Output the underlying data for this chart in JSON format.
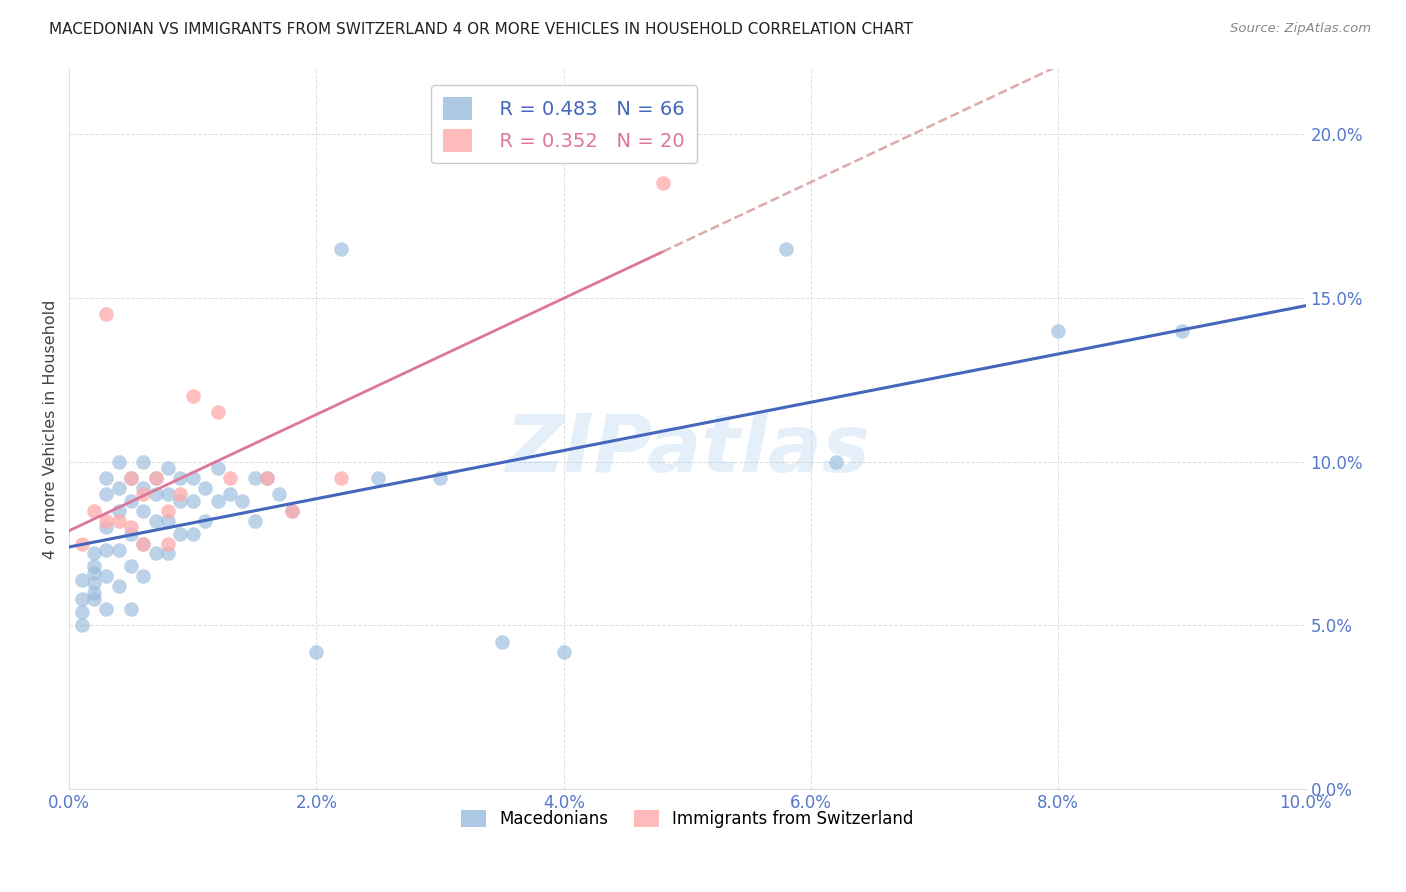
{
  "title": "MACEDONIAN VS IMMIGRANTS FROM SWITZERLAND 4 OR MORE VEHICLES IN HOUSEHOLD CORRELATION CHART",
  "source": "Source: ZipAtlas.com",
  "ylabel": "4 or more Vehicles in Household",
  "legend_label_blue": "Macedonians",
  "legend_label_pink": "Immigrants from Switzerland",
  "legend_R_blue": "R = 0.483",
  "legend_N_blue": "N = 66",
  "legend_R_pink": "R = 0.352",
  "legend_N_pink": "N = 20",
  "xlim": [
    0.0,
    0.1
  ],
  "ylim": [
    0.0,
    0.22
  ],
  "xtick_vals": [
    0.0,
    0.02,
    0.04,
    0.06,
    0.08,
    0.1
  ],
  "ytick_vals": [
    0.0,
    0.05,
    0.1,
    0.15,
    0.2
  ],
  "blue_scatter_color": "#99BBDD",
  "pink_scatter_color": "#FFAAAA",
  "trendline_blue_color": "#4466BB",
  "trendline_pink_solid_color": "#DD7799",
  "trendline_pink_dashed_color": "#DDAAAA",
  "watermark": "ZIPatlas",
  "tick_color": "#5577CC",
  "grid_color": "#DDDDDD",
  "mac_x": [
    0.001,
    0.001,
    0.001,
    0.001,
    0.002,
    0.002,
    0.002,
    0.002,
    0.002,
    0.002,
    0.003,
    0.003,
    0.003,
    0.003,
    0.003,
    0.003,
    0.004,
    0.004,
    0.004,
    0.004,
    0.004,
    0.005,
    0.005,
    0.005,
    0.005,
    0.005,
    0.006,
    0.006,
    0.006,
    0.006,
    0.006,
    0.007,
    0.007,
    0.007,
    0.007,
    0.008,
    0.008,
    0.008,
    0.008,
    0.009,
    0.009,
    0.009,
    0.01,
    0.01,
    0.01,
    0.011,
    0.011,
    0.012,
    0.012,
    0.013,
    0.014,
    0.015,
    0.015,
    0.016,
    0.017,
    0.018,
    0.02,
    0.022,
    0.025,
    0.03,
    0.035,
    0.04,
    0.058,
    0.062,
    0.08,
    0.09
  ],
  "mac_y": [
    0.064,
    0.058,
    0.054,
    0.05,
    0.068,
    0.063,
    0.058,
    0.072,
    0.066,
    0.06,
    0.095,
    0.09,
    0.08,
    0.073,
    0.065,
    0.055,
    0.1,
    0.092,
    0.085,
    0.073,
    0.062,
    0.095,
    0.088,
    0.078,
    0.068,
    0.055,
    0.1,
    0.092,
    0.085,
    0.075,
    0.065,
    0.095,
    0.09,
    0.082,
    0.072,
    0.098,
    0.09,
    0.082,
    0.072,
    0.095,
    0.088,
    0.078,
    0.095,
    0.088,
    0.078,
    0.092,
    0.082,
    0.098,
    0.088,
    0.09,
    0.088,
    0.095,
    0.082,
    0.095,
    0.09,
    0.085,
    0.042,
    0.165,
    0.095,
    0.095,
    0.045,
    0.042,
    0.165,
    0.1,
    0.14,
    0.14
  ],
  "sw_x": [
    0.001,
    0.002,
    0.003,
    0.003,
    0.004,
    0.005,
    0.005,
    0.006,
    0.006,
    0.007,
    0.008,
    0.008,
    0.009,
    0.01,
    0.012,
    0.013,
    0.016,
    0.018,
    0.022,
    0.048
  ],
  "sw_y": [
    0.075,
    0.085,
    0.145,
    0.082,
    0.082,
    0.095,
    0.08,
    0.09,
    0.075,
    0.095,
    0.085,
    0.075,
    0.09,
    0.12,
    0.115,
    0.095,
    0.095,
    0.085,
    0.095,
    0.185
  ]
}
